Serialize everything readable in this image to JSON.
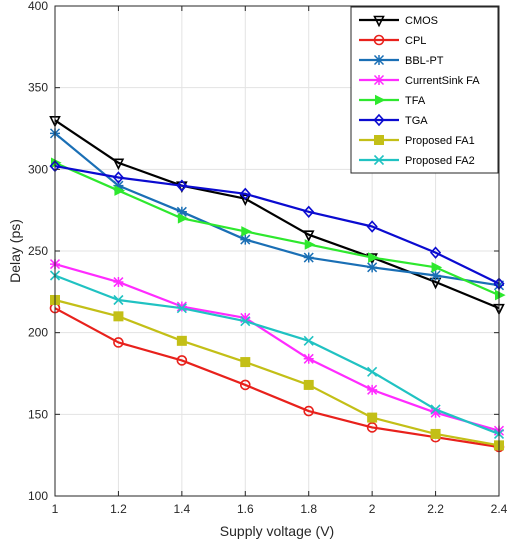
{
  "chart_data": {
    "type": "line",
    "xlabel": "Supply voltage (V)",
    "ylabel": "Delay (ps)",
    "x": [
      1,
      1.2,
      1.4,
      1.6,
      1.8,
      2,
      2.2,
      2.4
    ],
    "x_tick_labels": [
      "1",
      "1.2",
      "1.4",
      "1.6",
      "1.8",
      "2",
      "2.2",
      "2.4"
    ],
    "xlim": [
      1,
      2.4
    ],
    "ylim": [
      100,
      400
    ],
    "y_ticks": [
      100,
      150,
      200,
      250,
      300,
      350,
      400
    ],
    "grid": true,
    "legend_position": "top-right",
    "series": [
      {
        "name": "CMOS",
        "color": "#000000",
        "marker": "triangle-down",
        "values": [
          330,
          304,
          290,
          282,
          260,
          246,
          231,
          215
        ]
      },
      {
        "name": "CPL",
        "color": "#e8211c",
        "marker": "circle",
        "values": [
          215,
          194,
          183,
          168,
          152,
          142,
          136,
          130
        ]
      },
      {
        "name": "BBL-PT",
        "color": "#1a6fb5",
        "marker": "star",
        "values": [
          322,
          290,
          274,
          257,
          246,
          240,
          235,
          229
        ]
      },
      {
        "name": "CurrentSink FA",
        "color": "#ff2bff",
        "marker": "star",
        "values": [
          242,
          231,
          216,
          209,
          184,
          165,
          151,
          140
        ]
      },
      {
        "name": "TFA",
        "color": "#2ee82e",
        "marker": "triangle-right",
        "values": [
          304,
          287,
          270,
          262,
          254,
          246,
          240,
          223
        ]
      },
      {
        "name": "TGA",
        "color": "#0b0bd0",
        "marker": "diamond",
        "values": [
          302,
          295,
          290,
          285,
          274,
          265,
          249,
          230
        ]
      },
      {
        "name": "Proposed FA1",
        "color": "#c3bf17",
        "marker": "square",
        "values": [
          220,
          210,
          195,
          182,
          168,
          148,
          138,
          131
        ]
      },
      {
        "name": "Proposed FA2",
        "color": "#20c2c2",
        "marker": "x",
        "values": [
          235,
          220,
          215,
          207,
          195,
          176,
          153,
          138
        ]
      }
    ]
  }
}
